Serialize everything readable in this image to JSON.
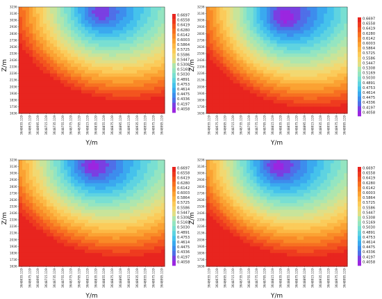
{
  "chart_data": [
    {
      "type": "heatmap",
      "title": "",
      "xlabel": "Y/m",
      "ylabel": "Z/m",
      "x_ticks": [
        "3648655.119",
        "3648675.119",
        "3648695.119",
        "3648715.119",
        "3648735.119",
        "3648755.119",
        "3648775.119",
        "3648795.119",
        "3648815.119",
        "3648835.119",
        "3648855.119",
        "3648875.119",
        "3648895.119",
        "3648915.119",
        "3648935.119",
        "3648955.119",
        "3648975.119",
        "3648995.119"
      ],
      "y_ticks": [
        "1636",
        "1736",
        "1836",
        "1936",
        "2036",
        "2136",
        "2236",
        "2336",
        "2436",
        "2536",
        "2636",
        "2736",
        "2836",
        "2936",
        "3036",
        "3136",
        "3236"
      ],
      "ylim": [
        1636,
        3236
      ],
      "colorbar_levels": [
        "0.6697",
        "0.6558",
        "0.6419",
        "0.6280",
        "0.6142",
        "0.6003",
        "0.5864",
        "0.5725",
        "0.5586",
        "0.5447",
        "0.5308",
        "0.5169",
        "0.5030",
        "0.4891",
        "0.4753",
        "0.4614",
        "0.4475",
        "0.4336",
        "0.4197",
        "0.4058"
      ],
      "field_features": {
        "low_center_y_fraction": 0.55,
        "low_center_z": 3136,
        "high_region": "bottom-left"
      }
    },
    {
      "type": "heatmap",
      "title": "",
      "xlabel": "Y/m",
      "ylabel": "Z/m",
      "x_ticks": [
        "3648655.119",
        "3648675.119",
        "3648695.119",
        "3648715.119",
        "3648735.119",
        "3648755.119",
        "3648775.119",
        "3648795.119",
        "3648815.119",
        "3648835.119",
        "3648855.119",
        "3648875.119",
        "3648895.119",
        "3648915.119",
        "3648935.119",
        "3648955.119",
        "3648975.119",
        "3648995.119"
      ],
      "y_ticks": [
        "1636",
        "1736",
        "1836",
        "1936",
        "2036",
        "2136",
        "2236",
        "2336",
        "2436",
        "2536",
        "2636",
        "2736",
        "2836",
        "2936",
        "3036",
        "3136",
        "3236"
      ],
      "ylim": [
        1636,
        3236
      ],
      "colorbar_levels": [
        "0.6697",
        "0.6558",
        "0.6419",
        "0.6280",
        "0.6142",
        "0.6003",
        "0.5864",
        "0.5725",
        "0.5586",
        "0.5447",
        "0.5308",
        "0.5169",
        "0.5030",
        "0.4891",
        "0.4753",
        "0.4614",
        "0.4475",
        "0.4336",
        "0.4197",
        "0.4058"
      ],
      "field_features": {
        "low_center_y_fraction": 0.55,
        "low_center_z": 3086,
        "high_region": "left"
      }
    },
    {
      "type": "heatmap",
      "title": "",
      "xlabel": "Y/m",
      "ylabel": "Z/m",
      "x_ticks": [
        "3648655.119",
        "3648675.119",
        "3648695.119",
        "3648715.119",
        "3648735.119",
        "3648755.119",
        "3648775.119",
        "3648795.119",
        "3648815.119",
        "3648835.119",
        "3648855.119",
        "3648875.119",
        "3648895.119",
        "3648915.119",
        "3648935.119",
        "3648955.119",
        "3648975.119",
        "3648995.119"
      ],
      "y_ticks": [
        "1636",
        "1736",
        "1836",
        "1936",
        "2036",
        "2136",
        "2236",
        "2336",
        "2436",
        "2536",
        "2636",
        "2736",
        "2836",
        "2936",
        "3036",
        "3136",
        "3236"
      ],
      "ylim": [
        1636,
        3236
      ],
      "colorbar_levels": [
        "0.6697",
        "0.6558",
        "0.6419",
        "0.6280",
        "0.6142",
        "0.6003",
        "0.5864",
        "0.5725",
        "0.5586",
        "0.5447",
        "0.5308",
        "0.5169",
        "0.5030",
        "0.4891",
        "0.4753",
        "0.4614",
        "0.4475",
        "0.4336",
        "0.4197",
        "0.4058"
      ],
      "field_features": {
        "low_center_y_fraction": 0.5,
        "low_center_z": 3136,
        "high_region": "left"
      }
    },
    {
      "type": "heatmap",
      "title": "",
      "xlabel": "Y/m",
      "ylabel": "Z/m",
      "x_ticks": [
        "3648655.119",
        "3648675.119",
        "3648695.119",
        "3648715.119",
        "3648735.119",
        "3648755.119",
        "3648775.119",
        "3648795.119",
        "3648815.119",
        "3648835.119",
        "3648855.119",
        "3648875.119",
        "3648895.119",
        "3648915.119",
        "3648935.119",
        "3648955.119",
        "3648975.119",
        "3648995.119"
      ],
      "y_ticks": [
        "1636",
        "1736",
        "1836",
        "1936",
        "2036",
        "2136",
        "2236",
        "2336",
        "2436",
        "2536",
        "2636",
        "2736",
        "2836",
        "2936",
        "3036",
        "3136",
        "3236"
      ],
      "ylim": [
        1636,
        3236
      ],
      "colorbar_levels": [
        "0.6697",
        "0.6558",
        "0.6419",
        "0.6280",
        "0.6142",
        "0.6003",
        "0.5864",
        "0.5725",
        "0.5586",
        "0.5447",
        "0.5308",
        "0.5169",
        "0.5030",
        "0.4891",
        "0.4753",
        "0.4614",
        "0.4475",
        "0.4336",
        "0.4197",
        "0.4058"
      ],
      "field_features": {
        "low_center_y_fraction": 0.5,
        "low_center_z": 3136,
        "high_region": "left"
      }
    }
  ],
  "colormap": [
    "#e8251f",
    "#ee3b1f",
    "#f3551f",
    "#f77021",
    "#f98a27",
    "#fba233",
    "#fcb845",
    "#fbcb5a",
    "#f2d871",
    "#e0df86",
    "#c8e49a",
    "#aee6ae",
    "#94e5c1",
    "#79dfd2",
    "#5ed3e1",
    "#45c2ec",
    "#3aa9ef",
    "#3d8ded",
    "#4f6fe8",
    "#7a3fe2",
    "#9b26e0"
  ]
}
